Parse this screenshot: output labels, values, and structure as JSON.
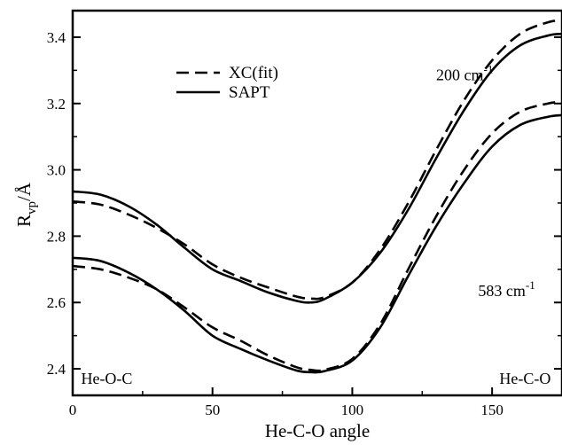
{
  "chart_data": {
    "type": "line",
    "xlabel": "He-C-O angle",
    "ylabel": "R",
    "ylabel_sub": "vp",
    "ylabel_unit": "/Å",
    "xlim": [
      0,
      175
    ],
    "ylim": [
      2.32,
      3.48
    ],
    "xticks": [
      0,
      50,
      100,
      150
    ],
    "yticks": [
      2.4,
      2.6,
      2.8,
      3.0,
      3.2,
      3.4
    ],
    "grid": false,
    "legend_position": "top-left",
    "legend": [
      {
        "name": "XC(fit)",
        "style": "dashed"
      },
      {
        "name": "SAPT",
        "style": "solid"
      }
    ],
    "annotations": [
      {
        "text": "200 cm",
        "sup": "-1",
        "x": 130,
        "y": 3.27
      },
      {
        "text": "583 cm",
        "sup": "-1",
        "x": 145,
        "y": 2.62
      },
      {
        "text": "He-O-C",
        "x": 3,
        "y": 2.355
      },
      {
        "text": "He-C-O",
        "x": 171,
        "y": 2.355
      }
    ],
    "series": [
      {
        "name": "XC(fit)",
        "group": "200 cm-1",
        "style": "dashed",
        "x": [
          0,
          10,
          20,
          30,
          40,
          50,
          60,
          70,
          80,
          85,
          90,
          100,
          110,
          120,
          130,
          140,
          150,
          160,
          170,
          175
        ],
        "y": [
          2.905,
          2.895,
          2.865,
          2.825,
          2.775,
          2.715,
          2.675,
          2.645,
          2.618,
          2.612,
          2.616,
          2.66,
          2.76,
          2.9,
          3.06,
          3.21,
          3.33,
          3.41,
          3.445,
          3.45
        ]
      },
      {
        "name": "SAPT",
        "group": "200 cm-1",
        "style": "solid",
        "x": [
          0,
          10,
          20,
          30,
          40,
          50,
          60,
          70,
          80,
          85,
          90,
          100,
          110,
          120,
          130,
          140,
          150,
          160,
          170,
          175
        ],
        "y": [
          2.935,
          2.925,
          2.89,
          2.835,
          2.765,
          2.7,
          2.665,
          2.63,
          2.605,
          2.6,
          2.61,
          2.66,
          2.75,
          2.88,
          3.035,
          3.18,
          3.3,
          3.375,
          3.405,
          3.41
        ]
      },
      {
        "name": "XC(fit)",
        "group": "583 cm-1",
        "style": "dashed",
        "x": [
          0,
          10,
          20,
          30,
          40,
          50,
          60,
          70,
          80,
          85,
          90,
          100,
          110,
          120,
          130,
          140,
          150,
          160,
          170,
          175
        ],
        "y": [
          2.71,
          2.7,
          2.675,
          2.64,
          2.585,
          2.525,
          2.485,
          2.44,
          2.405,
          2.397,
          2.397,
          2.43,
          2.535,
          2.7,
          2.86,
          3.0,
          3.11,
          3.175,
          3.2,
          3.205
        ]
      },
      {
        "name": "SAPT",
        "group": "583 cm-1",
        "style": "solid",
        "x": [
          0,
          10,
          20,
          30,
          40,
          50,
          60,
          70,
          80,
          85,
          90,
          100,
          110,
          120,
          130,
          140,
          150,
          160,
          170,
          175
        ],
        "y": [
          2.735,
          2.725,
          2.69,
          2.64,
          2.575,
          2.5,
          2.46,
          2.425,
          2.395,
          2.39,
          2.393,
          2.425,
          2.525,
          2.68,
          2.83,
          2.96,
          3.07,
          3.135,
          3.16,
          3.165
        ]
      }
    ]
  }
}
